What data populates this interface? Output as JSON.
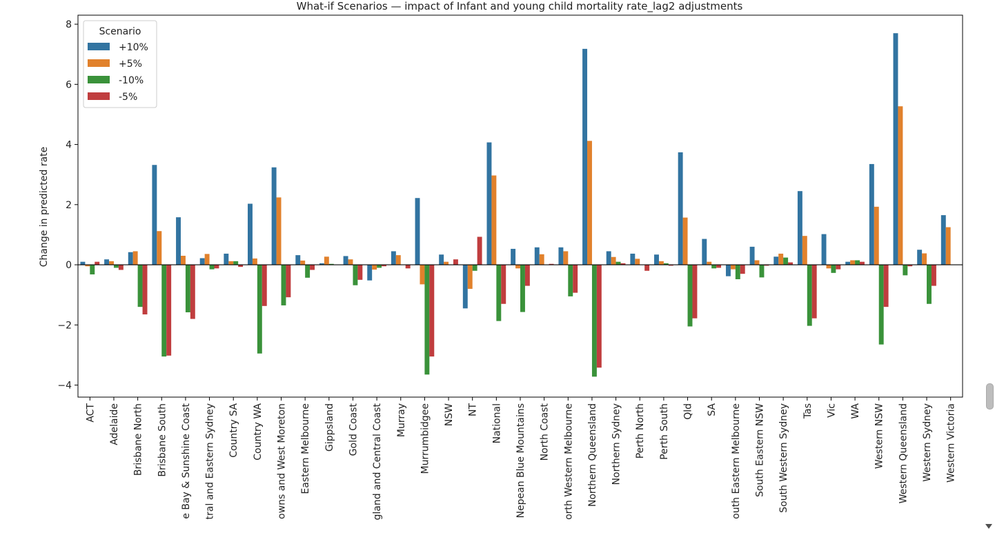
{
  "chart_data": {
    "type": "bar",
    "title": "What-if Scenarios — impact of Infant and young child mortality rate_lag2 adjustments",
    "ylabel": "Change in predicted rate",
    "xlabel": "",
    "ylim": [
      -4.4,
      8.3
    ],
    "yticks": [
      -4,
      -2,
      0,
      2,
      4,
      6,
      8
    ],
    "grid": false,
    "legend": {
      "title": "Scenario",
      "placement": "top-left"
    },
    "categories": [
      "ACT",
      "Adelaide",
      "Brisbane North",
      "Brisbane South",
      "Central Queensland, Wide Bay & Sunshine Coast",
      "Central and Eastern Sydney",
      "Country SA",
      "Country WA",
      "Darling Downs and West Moreton",
      "Eastern Melbourne",
      "Gippsland",
      "Gold Coast",
      "Hunter New England and Central Coast",
      "Murray",
      "Murrumbidgee",
      "NSW",
      "NT",
      "National",
      "Nepean Blue Mountains",
      "North Coast",
      "North Western Melbourne",
      "Northern Queensland",
      "Northern Sydney",
      "Perth North",
      "Perth South",
      "Qld",
      "SA",
      "South Eastern Melbourne",
      "South Eastern NSW",
      "South Western Sydney",
      "Tas",
      "Vic",
      "WA",
      "Western NSW",
      "Western Queensland",
      "Western Sydney",
      "Western Victoria"
    ],
    "tick_labels": [
      "ACT",
      "Adelaide",
      "Brisbane North",
      "Brisbane South",
      "e Bay & Sunshine Coast",
      "tral and Eastern Sydney",
      "Country SA",
      "Country WA",
      "owns and West Moreton",
      "Eastern Melbourne",
      "Gippsland",
      "Gold Coast",
      "gland and Central Coast",
      "Murray",
      "Murrumbidgee",
      "NSW",
      "NT",
      "National",
      "Nepean Blue Mountains",
      "North Coast",
      "orth Western Melbourne",
      "Northern Queensland",
      "Northern Sydney",
      "Perth North",
      "Perth South",
      "Qld",
      "SA",
      "outh Eastern Melbourne",
      "South Eastern NSW",
      "South Western Sydney",
      "Tas",
      "Vic",
      "WA",
      "Western NSW",
      "Western Queensland",
      "Western Sydney",
      "Western Victoria"
    ],
    "series": [
      {
        "name": "+10%",
        "color": "#3274a1",
        "values": [
          0.1,
          0.18,
          0.42,
          3.32,
          1.58,
          0.22,
          0.37,
          2.03,
          3.24,
          0.32,
          0.05,
          0.29,
          -0.52,
          0.45,
          2.22,
          0.34,
          -1.45,
          4.07,
          0.53,
          0.58,
          0.58,
          7.18,
          0.45,
          0.37,
          0.34,
          3.74,
          0.86,
          -0.38,
          0.6,
          0.27,
          2.45,
          1.02,
          0.1,
          3.35,
          7.7,
          0.5,
          1.65
        ]
      },
      {
        "name": "+5%",
        "color": "#e1812c",
        "values": [
          -0.05,
          0.12,
          0.45,
          1.12,
          0.3,
          0.36,
          0.12,
          0.21,
          2.24,
          0.14,
          0.27,
          0.18,
          -0.16,
          0.32,
          -0.65,
          0.1,
          -0.8,
          2.97,
          -0.12,
          0.35,
          0.45,
          4.12,
          0.26,
          0.2,
          0.12,
          1.57,
          0.1,
          -0.15,
          0.15,
          0.37,
          0.96,
          -0.12,
          0.15,
          1.93,
          5.27,
          0.38,
          1.25
        ]
      },
      {
        "name": "-10%",
        "color": "#3a923a",
        "values": [
          -0.32,
          -0.1,
          -1.4,
          -3.05,
          -1.58,
          -0.15,
          0.12,
          -2.95,
          -1.35,
          -0.43,
          0.03,
          -0.68,
          -0.1,
          0.0,
          -3.65,
          0.0,
          -0.2,
          -1.87,
          -1.57,
          0.0,
          -1.05,
          -3.72,
          0.1,
          0.0,
          0.05,
          -2.05,
          -0.12,
          -0.48,
          -0.42,
          0.24,
          -2.03,
          -0.27,
          0.15,
          -2.65,
          -0.35,
          -1.3,
          0.0
        ]
      },
      {
        "name": "-5%",
        "color": "#c03d3e",
        "values": [
          0.1,
          -0.17,
          -1.65,
          -3.02,
          -1.8,
          -0.12,
          -0.07,
          -1.37,
          -1.08,
          -0.17,
          0.0,
          -0.5,
          -0.05,
          -0.12,
          -3.05,
          0.18,
          0.93,
          -1.3,
          -0.7,
          0.03,
          -0.93,
          -3.42,
          0.05,
          -0.2,
          -0.03,
          -1.78,
          -0.1,
          -0.3,
          -0.03,
          0.08,
          -1.78,
          -0.15,
          0.1,
          -1.4,
          -0.05,
          -0.7,
          0.0
        ]
      }
    ]
  }
}
